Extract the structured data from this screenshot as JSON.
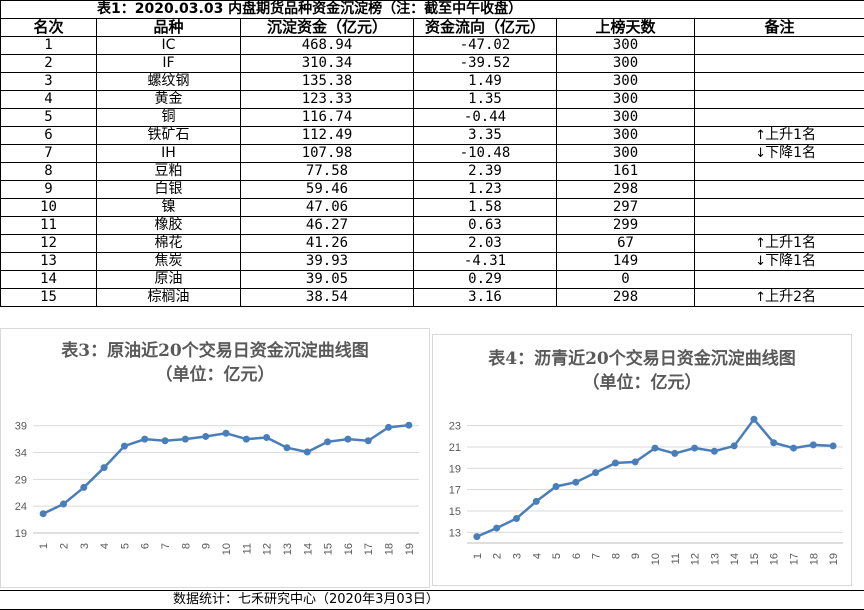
{
  "table": {
    "title": "表1：2020.03.03 内盘期货品种资金沉淀榜（注：截至中午收盘）",
    "headers": [
      "名次",
      "品种",
      "沉淀资金（亿元）",
      "资金流向（亿元）",
      "上榜天数",
      "备注"
    ],
    "rows": [
      {
        "rank": "1",
        "name": "IC",
        "funds": "468.94",
        "flow": "-47.02",
        "days": "300",
        "note": "",
        "arrow": ""
      },
      {
        "rank": "2",
        "name": "IF",
        "funds": "310.34",
        "flow": "-39.52",
        "days": "300",
        "note": "",
        "arrow": ""
      },
      {
        "rank": "3",
        "name": "螺纹钢",
        "funds": "135.38",
        "flow": "1.49",
        "days": "300",
        "note": "",
        "arrow": ""
      },
      {
        "rank": "4",
        "name": "黄金",
        "funds": "123.33",
        "flow": "1.35",
        "days": "300",
        "note": "",
        "arrow": ""
      },
      {
        "rank": "5",
        "name": "铜",
        "funds": "116.74",
        "flow": "-0.44",
        "days": "300",
        "note": "",
        "arrow": ""
      },
      {
        "rank": "6",
        "name": "铁矿石",
        "funds": "112.49",
        "flow": "3.35",
        "days": "300",
        "note": "上升1名",
        "arrow": "↑"
      },
      {
        "rank": "7",
        "name": "IH",
        "funds": "107.98",
        "flow": "-10.48",
        "days": "300",
        "note": "下降1名",
        "arrow": "↓"
      },
      {
        "rank": "8",
        "name": "豆粕",
        "funds": "77.58",
        "flow": "2.39",
        "days": "161",
        "note": "",
        "arrow": ""
      },
      {
        "rank": "9",
        "name": "白银",
        "funds": "59.46",
        "flow": "1.23",
        "days": "298",
        "note": "",
        "arrow": ""
      },
      {
        "rank": "10",
        "name": "镍",
        "funds": "47.06",
        "flow": "1.58",
        "days": "297",
        "note": "",
        "arrow": ""
      },
      {
        "rank": "11",
        "name": "橡胶",
        "funds": "46.27",
        "flow": "0.63",
        "days": "299",
        "note": "",
        "arrow": ""
      },
      {
        "rank": "12",
        "name": "棉花",
        "funds": "41.26",
        "flow": "2.03",
        "days": "67",
        "note": "上升1名",
        "arrow": "↑"
      },
      {
        "rank": "13",
        "name": "焦炭",
        "funds": "39.93",
        "flow": "-4.31",
        "days": "149",
        "note": "下降1名",
        "arrow": "↓"
      },
      {
        "rank": "14",
        "name": "原油",
        "funds": "39.05",
        "flow": "0.29",
        "days": "0",
        "note": "",
        "arrow": ""
      },
      {
        "rank": "15",
        "name": "棕榈油",
        "funds": "38.54",
        "flow": "3.16",
        "days": "298",
        "note": "上升2名",
        "arrow": "↑"
      }
    ]
  },
  "chart_data": [
    {
      "type": "line",
      "title": "表3：原油近20个交易日资金沉淀曲线图",
      "subtitle": "（单位：亿元）",
      "x": [
        "1",
        "2",
        "3",
        "4",
        "5",
        "6",
        "7",
        "8",
        "9",
        "10",
        "11",
        "12",
        "13",
        "14",
        "15",
        "16",
        "17",
        "18",
        "19"
      ],
      "values": [
        22.6,
        24.4,
        27.5,
        31.2,
        35.2,
        36.5,
        36.2,
        36.5,
        37.0,
        37.6,
        36.5,
        36.8,
        34.9,
        34.1,
        36.0,
        36.5,
        36.2,
        38.7,
        39.1
      ],
      "yticks": [
        19,
        24,
        29,
        34,
        39
      ],
      "ylim": [
        19,
        41
      ],
      "color": "#4a7ebb"
    },
    {
      "type": "line",
      "title": "表4：沥青近20个交易日资金沉淀曲线图",
      "subtitle": "（单位：亿元）",
      "x": [
        "1",
        "2",
        "3",
        "4",
        "5",
        "6",
        "7",
        "8",
        "9",
        "10",
        "11",
        "12",
        "13",
        "14",
        "15",
        "16",
        "17",
        "18",
        "19"
      ],
      "values": [
        12.6,
        13.4,
        14.3,
        15.9,
        17.3,
        17.7,
        18.6,
        19.5,
        19.6,
        20.9,
        20.4,
        20.9,
        20.6,
        21.1,
        23.6,
        21.4,
        20.9,
        21.2,
        21.1
      ],
      "yticks": [
        13,
        15,
        17,
        19,
        21,
        23
      ],
      "ylim": [
        12,
        24
      ],
      "color": "#4a7ebb"
    }
  ],
  "footer": "数据统计：七禾研究中心（2020年3月03日）"
}
